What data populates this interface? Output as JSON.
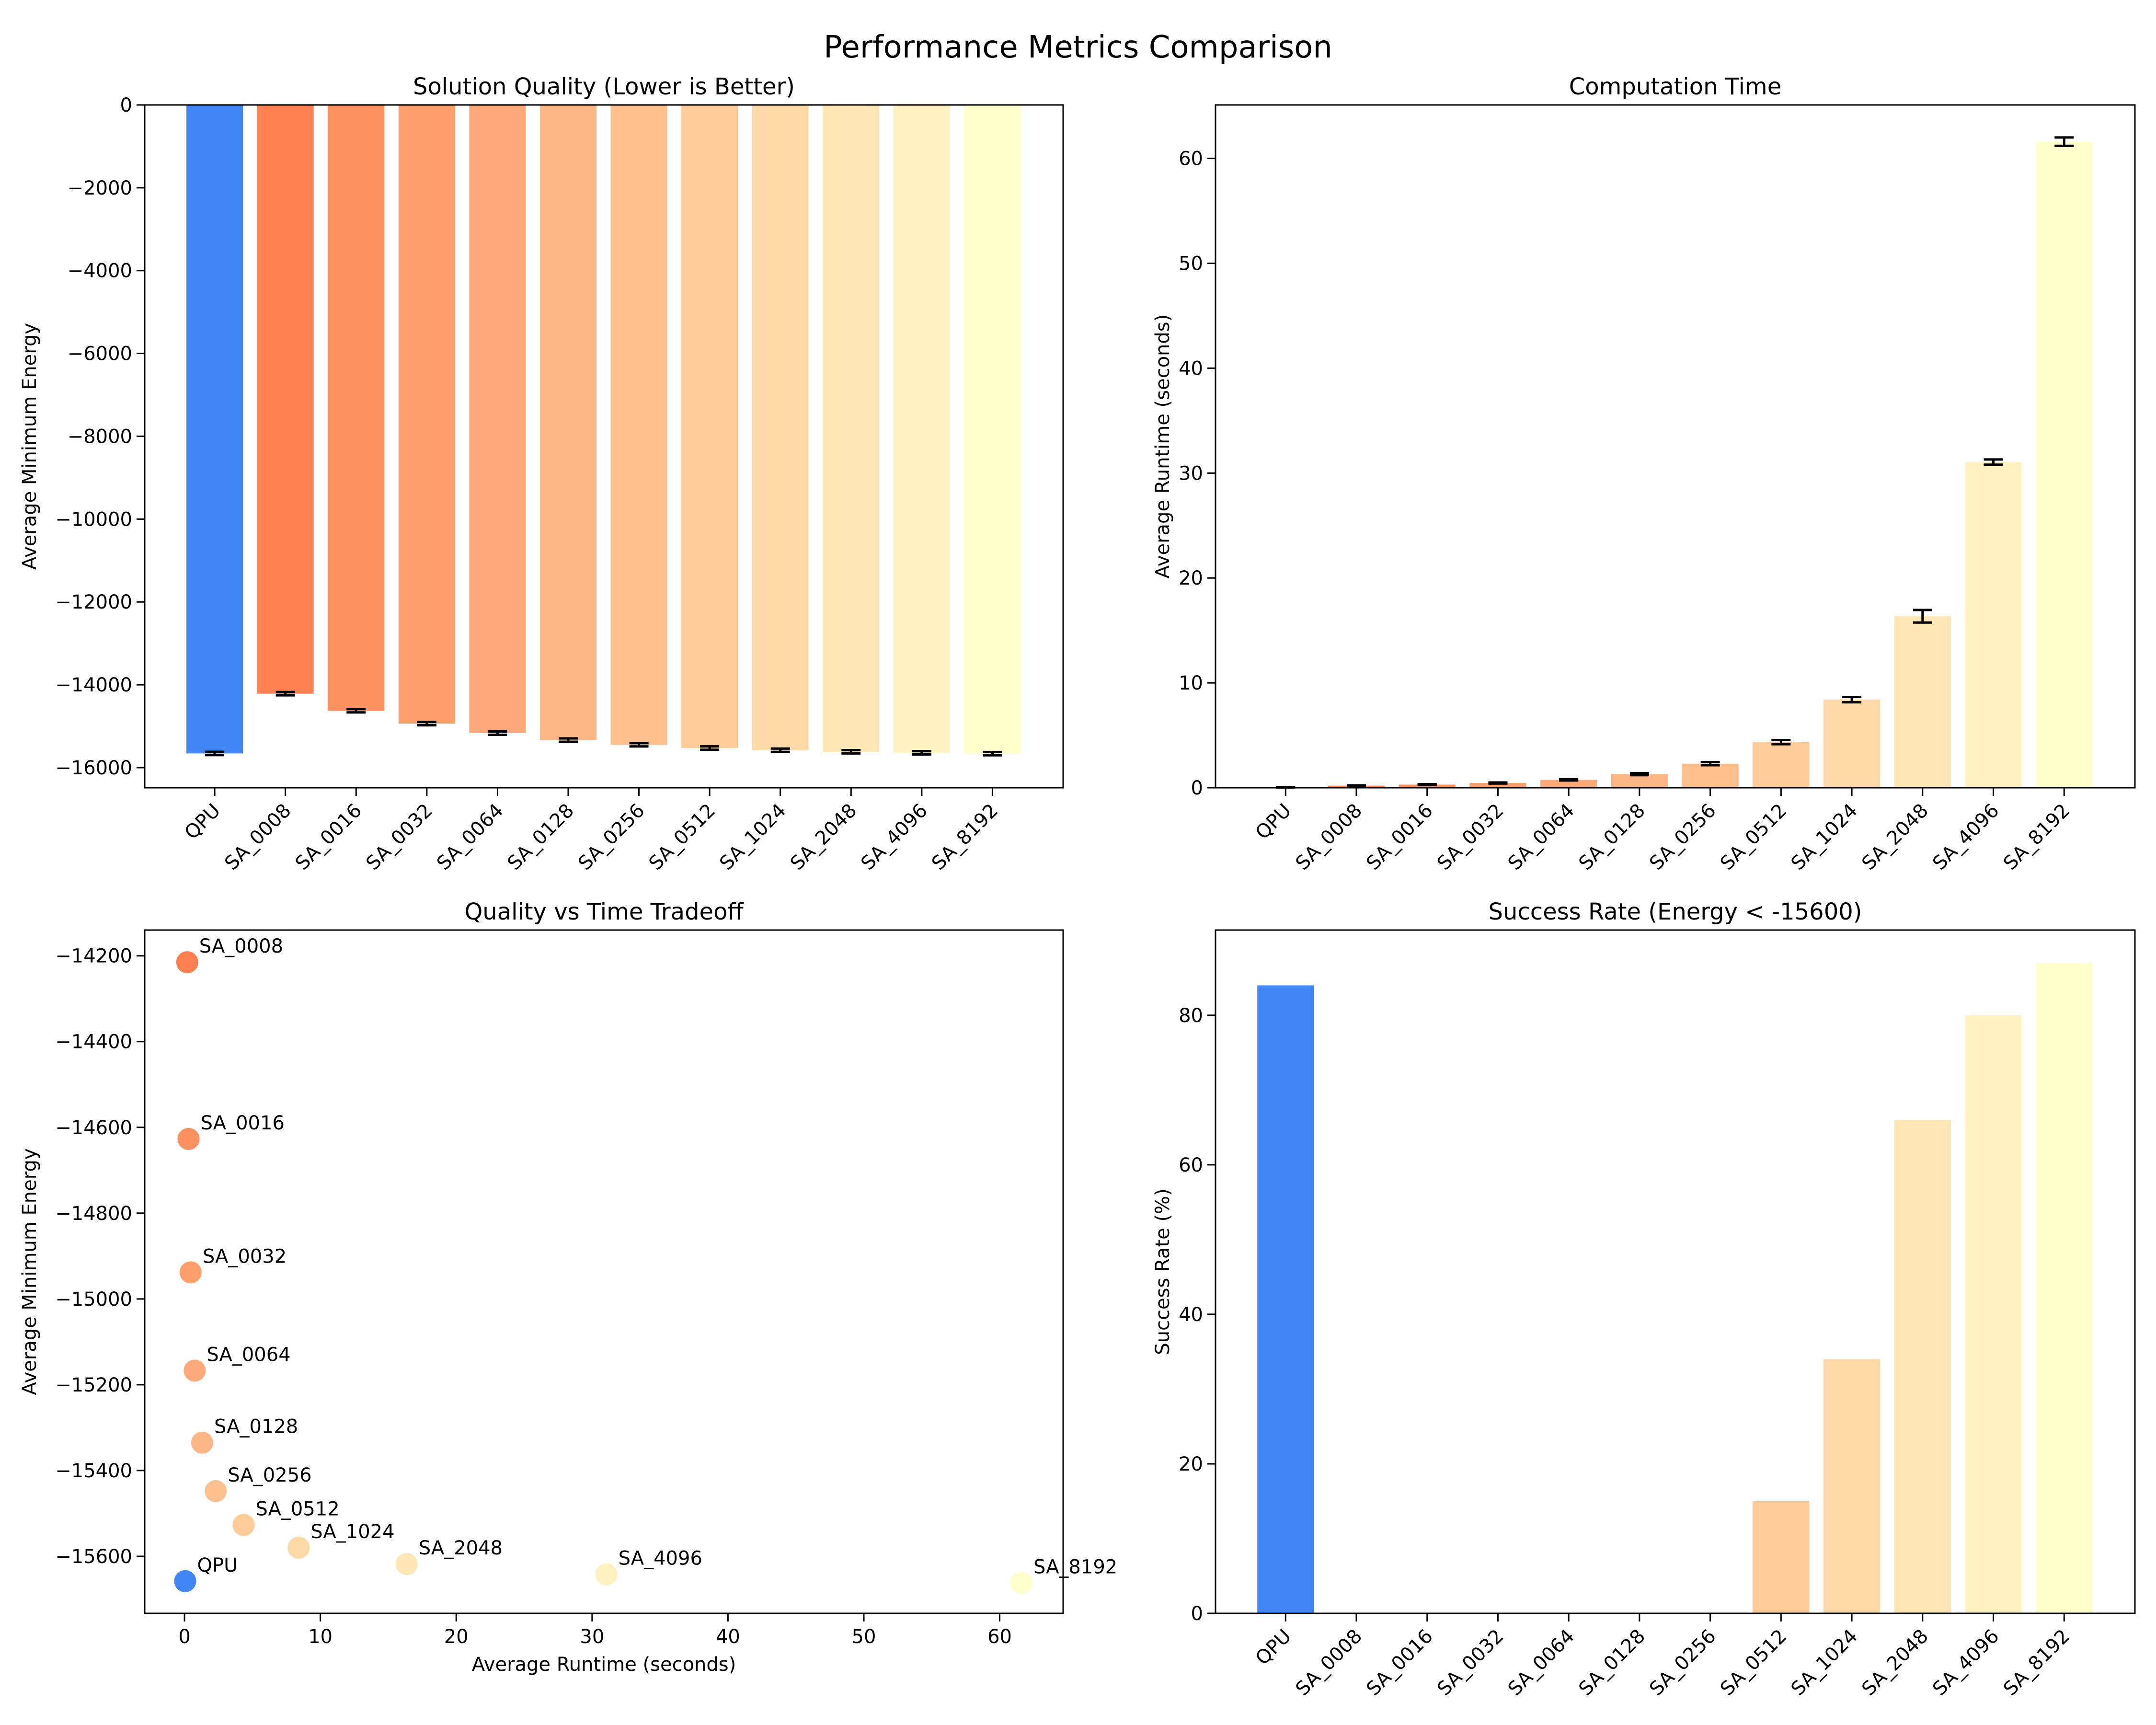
{
  "suptitle": "Performance Metrics Comparison",
  "colors": {
    "QPU": "#4285F4",
    "SA_0008": "#FF8050",
    "SA_0016": "#FF9060",
    "SA_0032": "#FFA06C",
    "SA_0064": "#FFAA7A",
    "SA_0128": "#FFB686",
    "SA_0256": "#FFC090",
    "SA_0512": "#FFCB98",
    "SA_1024": "#FED9A8",
    "SA_2048": "#FFE6B4",
    "SA_4096": "#FFF1C0",
    "SA_8192": "#FFFFCC"
  },
  "chart_data": [
    {
      "id": "quality",
      "type": "bar",
      "title": "Solution Quality (Lower is Better)",
      "xlabel": "",
      "ylabel": "Average Minimum Energy",
      "categories": [
        "QPU",
        "SA_0008",
        "SA_0016",
        "SA_0032",
        "SA_0064",
        "SA_0128",
        "SA_0256",
        "SA_0512",
        "SA_1024",
        "SA_2048",
        "SA_4096",
        "SA_8192"
      ],
      "values": [
        -15658,
        -14215,
        -14627,
        -14938,
        -15167,
        -15335,
        -15448,
        -15527,
        -15580,
        -15618,
        -15642,
        -15662
      ],
      "errors": [
        40,
        40,
        40,
        40,
        40,
        40,
        40,
        40,
        40,
        40,
        40,
        40
      ],
      "ylim": [
        -16486,
        0
      ],
      "yticks": [
        0,
        -2000,
        -4000,
        -6000,
        -8000,
        -10000,
        -12000,
        -14000,
        -16000
      ],
      "grid": false
    },
    {
      "id": "runtime",
      "type": "bar",
      "title": "Computation Time",
      "xlabel": "",
      "ylabel": "Average Runtime (seconds)",
      "categories": [
        "QPU",
        "SA_0008",
        "SA_0016",
        "SA_0032",
        "SA_0064",
        "SA_0128",
        "SA_0256",
        "SA_0512",
        "SA_1024",
        "SA_2048",
        "SA_4096",
        "SA_8192"
      ],
      "values": [
        0.05,
        0.2,
        0.3,
        0.45,
        0.75,
        1.3,
        2.3,
        4.35,
        8.4,
        16.35,
        31.05,
        61.6
      ],
      "errors": [
        0.02,
        0.03,
        0.04,
        0.05,
        0.06,
        0.1,
        0.15,
        0.2,
        0.25,
        0.6,
        0.25,
        0.4
      ],
      "ylim": [
        0,
        65.1
      ],
      "yticks": [
        0,
        10,
        20,
        30,
        40,
        50,
        60
      ],
      "grid": false
    },
    {
      "id": "tradeoff",
      "type": "scatter",
      "title": "Quality vs Time Tradeoff",
      "xlabel": "Average Runtime (seconds)",
      "ylabel": "Average Minimum Energy",
      "labels": [
        "QPU",
        "SA_0008",
        "SA_0016",
        "SA_0032",
        "SA_0064",
        "SA_0128",
        "SA_0256",
        "SA_0512",
        "SA_1024",
        "SA_2048",
        "SA_4096",
        "SA_8192"
      ],
      "x": [
        0.05,
        0.2,
        0.3,
        0.45,
        0.75,
        1.3,
        2.3,
        4.35,
        8.4,
        16.35,
        31.05,
        61.6
      ],
      "y": [
        -15658,
        -14215,
        -14627,
        -14938,
        -15167,
        -15335,
        -15448,
        -15527,
        -15580,
        -15618,
        -15642,
        -15662
      ],
      "xlim": [
        -2.93,
        64.67
      ],
      "ylim": [
        -15733,
        -14140
      ],
      "xticks": [
        0,
        10,
        20,
        30,
        40,
        50,
        60
      ],
      "yticks": [
        -14200,
        -14400,
        -14600,
        -14800,
        -15000,
        -15200,
        -15400,
        -15600
      ],
      "grid": false
    },
    {
      "id": "success",
      "type": "bar",
      "title": "Success Rate (Energy < -15600)",
      "xlabel": "",
      "ylabel": "Success Rate (%)",
      "categories": [
        "QPU",
        "SA_0008",
        "SA_0016",
        "SA_0032",
        "SA_0064",
        "SA_0128",
        "SA_0256",
        "SA_0512",
        "SA_1024",
        "SA_2048",
        "SA_4096",
        "SA_8192"
      ],
      "values": [
        84,
        0,
        0,
        0,
        0,
        0,
        0,
        15,
        34,
        66,
        80,
        87
      ],
      "ylim": [
        0,
        91.4
      ],
      "yticks": [
        0,
        20,
        40,
        60,
        80
      ],
      "grid": false
    }
  ]
}
